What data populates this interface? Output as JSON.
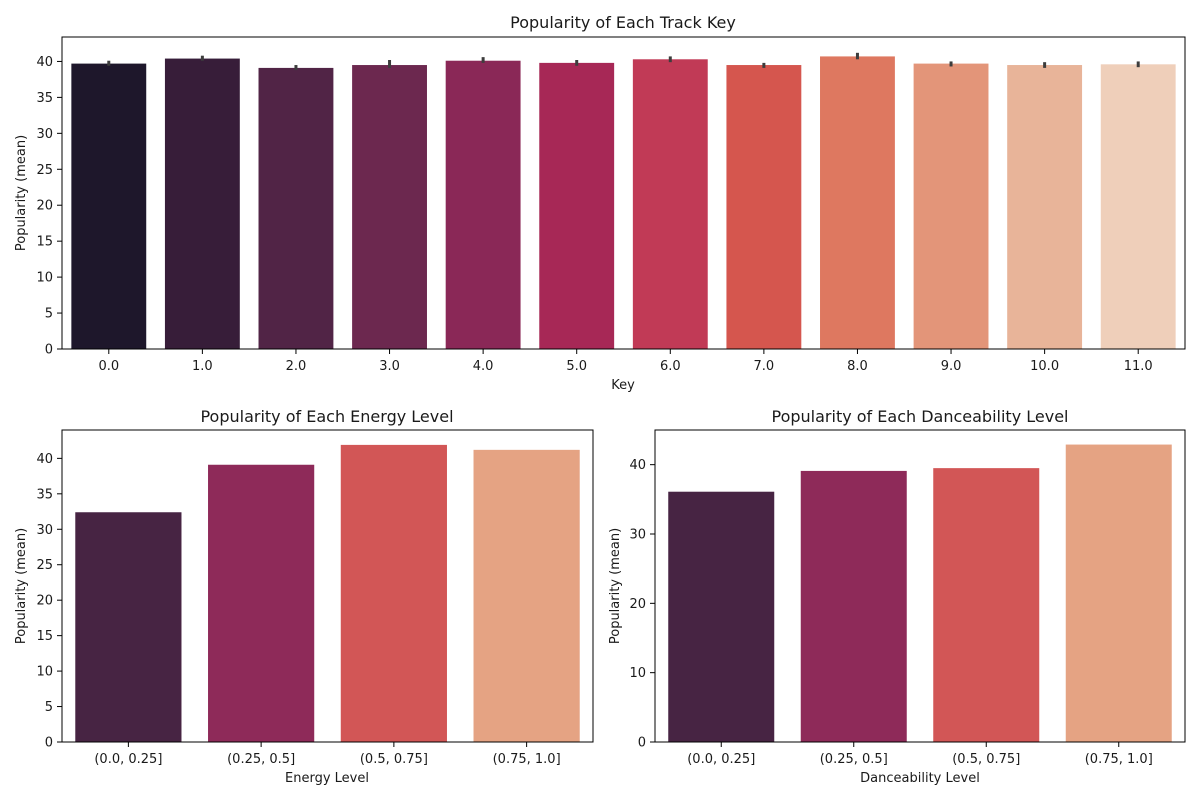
{
  "chart_data": [
    {
      "type": "bar",
      "title": "Popularity of Each Track Key",
      "xlabel": "Key",
      "ylabel": "Popularity (mean)",
      "categories": [
        "0.0",
        "1.0",
        "2.0",
        "3.0",
        "4.0",
        "5.0",
        "6.0",
        "7.0",
        "8.0",
        "9.0",
        "10.0",
        "11.0"
      ],
      "values": [
        39.7,
        40.4,
        39.1,
        39.5,
        40.1,
        39.8,
        40.3,
        39.5,
        40.7,
        39.7,
        39.5,
        39.6
      ],
      "error_bars": [
        [
          39.4,
          40.1
        ],
        [
          40.1,
          40.8
        ],
        [
          38.8,
          39.5
        ],
        [
          39.1,
          40.2
        ],
        [
          39.8,
          40.6
        ],
        [
          39.4,
          40.2
        ],
        [
          39.9,
          40.7
        ],
        [
          39.1,
          39.8
        ],
        [
          40.3,
          41.2
        ],
        [
          39.3,
          40.0
        ],
        [
          39.1,
          39.9
        ],
        [
          39.2,
          40.0
        ]
      ],
      "ylim": [
        0,
        43.4
      ],
      "yticks": [
        0,
        5,
        10,
        15,
        20,
        25,
        30,
        35,
        40
      ],
      "colors": [
        "#1e172b",
        "#371d39",
        "#512446",
        "#6c284f",
        "#8a2857",
        "#a72856",
        "#c13a56",
        "#d5564e",
        "#de7860",
        "#e39579",
        "#e8b499",
        "#efcfba"
      ],
      "grid": false
    },
    {
      "type": "bar",
      "title": "Popularity of Each Energy Level",
      "xlabel": "Energy Level",
      "ylabel": "Popularity (mean)",
      "categories": [
        "(0.0, 0.25]",
        "(0.25, 0.5]",
        "(0.5, 0.75]",
        "(0.75, 1.0]"
      ],
      "values": [
        32.4,
        39.1,
        41.9,
        41.2
      ],
      "ylim": [
        0,
        44
      ],
      "yticks": [
        0,
        5,
        10,
        15,
        20,
        25,
        30,
        35,
        40
      ],
      "colors": [
        "#472443",
        "#8e2a59",
        "#d25656",
        "#e5a383"
      ],
      "grid": false
    },
    {
      "type": "bar",
      "title": "Popularity of Each Danceability Level",
      "xlabel": "Danceability Level",
      "ylabel": "Popularity (mean)",
      "categories": [
        "(0.0, 0.25]",
        "(0.25, 0.5]",
        "(0.5, 0.75]",
        "(0.75, 1.0]"
      ],
      "values": [
        36.1,
        39.1,
        39.5,
        42.9
      ],
      "ylim": [
        0,
        45
      ],
      "yticks": [
        0,
        10,
        20,
        30,
        40
      ],
      "colors": [
        "#472443",
        "#8e2a59",
        "#d25656",
        "#e5a383"
      ],
      "grid": false
    }
  ]
}
